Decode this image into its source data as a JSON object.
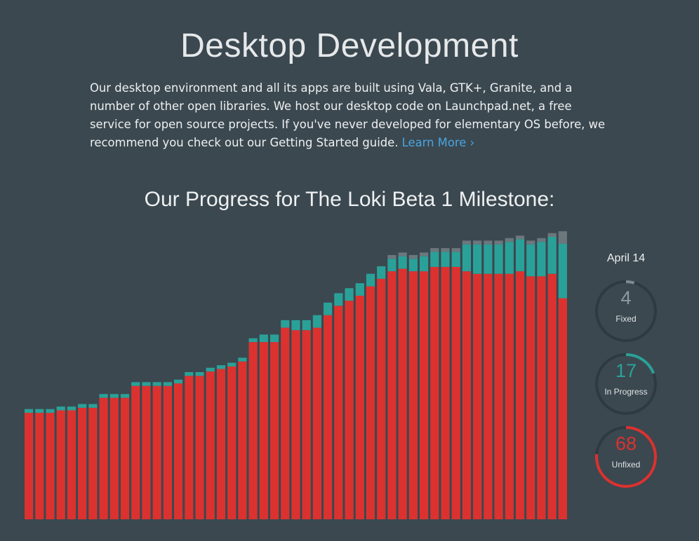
{
  "header": {
    "title": "Desktop Development",
    "intro_text": "Our desktop environment and all its apps are built using Vala, GTK+, Granite, and a number of other open libraries. We host our desktop code on Launchpad.net, a free service for open source projects. If you've never developed for elementary OS before, we recommend you check out our Getting Started guide. ",
    "learn_more_label": "Learn More ›"
  },
  "progress": {
    "subtitle": "Our Progress for The Loki Beta 1 Milestone:",
    "date": "April 14",
    "stats": [
      {
        "value": "4",
        "label": "Fixed",
        "color": "#7e8a91",
        "fraction": 0.045
      },
      {
        "value": "17",
        "label": "In Progress",
        "color": "#2aa198",
        "fraction": 0.191
      },
      {
        "value": "68",
        "label": "Unfixed",
        "color": "#dc322f",
        "fraction": 0.764
      }
    ]
  },
  "colors": {
    "background": "#3b4850",
    "fixed": "#6c777d",
    "in_progress": "#2aa198",
    "unfixed": "#dc322f",
    "ring_track": "#2f3a40",
    "link": "#49a5df"
  },
  "chart_data": {
    "type": "bar",
    "stacked": true,
    "series": [
      {
        "name": "Unfixed",
        "values": [
          17,
          17,
          17,
          17.4,
          17.4,
          17.8,
          17.8,
          19.4,
          19.4,
          19.4,
          21.3,
          21.3,
          21.3,
          21.3,
          21.7,
          22.9,
          22.9,
          23.6,
          24,
          24.4,
          25.2,
          28.3,
          28.3,
          28.3,
          30.6,
          30.2,
          30.2,
          30.6,
          32.6,
          34.1,
          34.9,
          35.7,
          37.2,
          38.4,
          39.6,
          40,
          39.6,
          39.6,
          40.3,
          40.3,
          40.3,
          39.6,
          39.2,
          39.2,
          39.2,
          39.2,
          39.6,
          38.8,
          38.8,
          39.2,
          35.3
        ]
      },
      {
        "name": "In Progress",
        "values": [
          0.6,
          0.6,
          0.6,
          0.6,
          0.6,
          0.6,
          0.6,
          0.6,
          0.6,
          0.6,
          0.6,
          0.6,
          0.6,
          0.6,
          0.6,
          0.6,
          0.6,
          0.6,
          0.6,
          0.6,
          0.6,
          0.6,
          1.2,
          1.2,
          1.2,
          1.6,
          1.6,
          2.0,
          2.0,
          2.0,
          2.0,
          2.0,
          2.0,
          2.0,
          2.0,
          2.0,
          2.0,
          2.4,
          2.4,
          2.4,
          2.4,
          4.3,
          4.7,
          4.7,
          4.7,
          5.1,
          5.1,
          5.1,
          5.5,
          5.9,
          8.7
        ]
      },
      {
        "name": "Fixed",
        "values": [
          0,
          0,
          0,
          0,
          0,
          0,
          0,
          0,
          0,
          0,
          0,
          0,
          0,
          0,
          0,
          0,
          0,
          0,
          0,
          0,
          0,
          0,
          0,
          0,
          0,
          0,
          0,
          0,
          0,
          0,
          0,
          0,
          0,
          0,
          0.6,
          0.6,
          0.6,
          0.6,
          0.6,
          0.6,
          0.6,
          0.6,
          0.6,
          0.6,
          0.6,
          0.6,
          0.6,
          0.6,
          0.6,
          0.6,
          2.0
        ]
      }
    ],
    "ylim": [
      0,
      47
    ]
  }
}
